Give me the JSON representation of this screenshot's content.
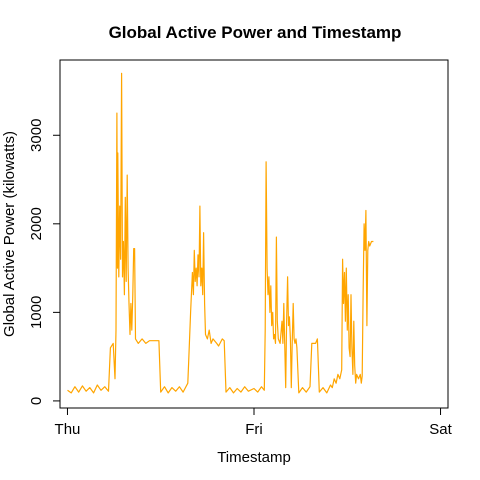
{
  "chart_data": {
    "type": "line",
    "title": "Global Active Power and Timestamp",
    "xlabel": "Timestamp",
    "ylabel": "Global Active Power (kilowatts)",
    "x_ticks": [
      {
        "label": "Thu",
        "value": 0
      },
      {
        "label": "Fri",
        "value": 1
      },
      {
        "label": "Sat",
        "value": 2
      }
    ],
    "y_ticks": [
      0,
      1000,
      2000,
      3000
    ],
    "xlim": [
      -0.04,
      2.04
    ],
    "ylim": [
      -80,
      3850
    ],
    "grid": false,
    "color": "#FFA500",
    "series": [
      {
        "x_unit": "days since Thu 00:00",
        "points": [
          [
            0.0,
            120
          ],
          [
            0.02,
            90
          ],
          [
            0.04,
            160
          ],
          [
            0.06,
            100
          ],
          [
            0.08,
            170
          ],
          [
            0.1,
            110
          ],
          [
            0.12,
            150
          ],
          [
            0.14,
            90
          ],
          [
            0.16,
            180
          ],
          [
            0.18,
            120
          ],
          [
            0.2,
            160
          ],
          [
            0.22,
            110
          ],
          [
            0.23,
            600
          ],
          [
            0.245,
            650
          ],
          [
            0.255,
            250
          ],
          [
            0.26,
            800
          ],
          [
            0.265,
            3250
          ],
          [
            0.268,
            1500
          ],
          [
            0.27,
            2800
          ],
          [
            0.275,
            1400
          ],
          [
            0.28,
            2200
          ],
          [
            0.285,
            1600
          ],
          [
            0.29,
            3700
          ],
          [
            0.295,
            1400
          ],
          [
            0.3,
            1800
          ],
          [
            0.305,
            1200
          ],
          [
            0.31,
            2300
          ],
          [
            0.315,
            1350
          ],
          [
            0.32,
            2550
          ],
          [
            0.325,
            1500
          ],
          [
            0.33,
            1100
          ],
          [
            0.335,
            750
          ],
          [
            0.34,
            1100
          ],
          [
            0.345,
            800
          ],
          [
            0.35,
            1200
          ],
          [
            0.355,
            1720
          ],
          [
            0.36,
            1720
          ],
          [
            0.365,
            700
          ],
          [
            0.38,
            650
          ],
          [
            0.4,
            700
          ],
          [
            0.42,
            650
          ],
          [
            0.44,
            680
          ],
          [
            0.49,
            680
          ],
          [
            0.5,
            100
          ],
          [
            0.52,
            160
          ],
          [
            0.54,
            90
          ],
          [
            0.56,
            150
          ],
          [
            0.58,
            110
          ],
          [
            0.6,
            160
          ],
          [
            0.62,
            100
          ],
          [
            0.645,
            200
          ],
          [
            0.65,
            450
          ],
          [
            0.66,
            1000
          ],
          [
            0.67,
            1450
          ],
          [
            0.675,
            1200
          ],
          [
            0.68,
            1700
          ],
          [
            0.685,
            1350
          ],
          [
            0.69,
            1500
          ],
          [
            0.695,
            1300
          ],
          [
            0.7,
            1650
          ],
          [
            0.705,
            1400
          ],
          [
            0.71,
            2200
          ],
          [
            0.715,
            1300
          ],
          [
            0.72,
            1500
          ],
          [
            0.725,
            1200
          ],
          [
            0.73,
            1900
          ],
          [
            0.735,
            1100
          ],
          [
            0.74,
            750
          ],
          [
            0.75,
            700
          ],
          [
            0.76,
            800
          ],
          [
            0.77,
            650
          ],
          [
            0.78,
            700
          ],
          [
            0.8,
            650
          ],
          [
            0.81,
            620
          ],
          [
            0.83,
            700
          ],
          [
            0.84,
            680
          ],
          [
            0.85,
            100
          ],
          [
            0.87,
            150
          ],
          [
            0.89,
            90
          ],
          [
            0.91,
            140
          ],
          [
            0.93,
            100
          ],
          [
            0.95,
            160
          ],
          [
            0.97,
            110
          ],
          [
            1.0,
            140
          ],
          [
            1.02,
            100
          ],
          [
            1.04,
            160
          ],
          [
            1.055,
            120
          ],
          [
            1.06,
            800
          ],
          [
            1.065,
            2700
          ],
          [
            1.07,
            1500
          ],
          [
            1.075,
            1200
          ],
          [
            1.08,
            1400
          ],
          [
            1.085,
            1000
          ],
          [
            1.09,
            1300
          ],
          [
            1.095,
            850
          ],
          [
            1.1,
            1000
          ],
          [
            1.105,
            700
          ],
          [
            1.11,
            750
          ],
          [
            1.115,
            650
          ],
          [
            1.12,
            1850
          ],
          [
            1.125,
            900
          ],
          [
            1.13,
            700
          ],
          [
            1.14,
            650
          ],
          [
            1.15,
            900
          ],
          [
            1.155,
            650
          ],
          [
            1.16,
            1100
          ],
          [
            1.17,
            150
          ],
          [
            1.175,
            900
          ],
          [
            1.18,
            1400
          ],
          [
            1.185,
            850
          ],
          [
            1.19,
            950
          ],
          [
            1.195,
            700
          ],
          [
            1.2,
            150
          ],
          [
            1.205,
            650
          ],
          [
            1.21,
            1100
          ],
          [
            1.215,
            700
          ],
          [
            1.22,
            650
          ],
          [
            1.225,
            700
          ],
          [
            1.23,
            600
          ],
          [
            1.24,
            90
          ],
          [
            1.26,
            150
          ],
          [
            1.28,
            100
          ],
          [
            1.3,
            160
          ],
          [
            1.31,
            650
          ],
          [
            1.33,
            650
          ],
          [
            1.34,
            700
          ],
          [
            1.35,
            100
          ],
          [
            1.37,
            150
          ],
          [
            1.39,
            90
          ],
          [
            1.41,
            180
          ],
          [
            1.42,
            150
          ],
          [
            1.43,
            250
          ],
          [
            1.44,
            200
          ],
          [
            1.45,
            300
          ],
          [
            1.46,
            250
          ],
          [
            1.47,
            350
          ],
          [
            1.475,
            1600
          ],
          [
            1.48,
            1100
          ],
          [
            1.485,
            1450
          ],
          [
            1.49,
            900
          ],
          [
            1.495,
            1500
          ],
          [
            1.5,
            800
          ],
          [
            1.505,
            1200
          ],
          [
            1.51,
            600
          ],
          [
            1.515,
            500
          ],
          [
            1.52,
            1200
          ],
          [
            1.525,
            600
          ],
          [
            1.53,
            300
          ],
          [
            1.535,
            900
          ],
          [
            1.54,
            400
          ],
          [
            1.545,
            200
          ],
          [
            1.55,
            300
          ],
          [
            1.56,
            250
          ],
          [
            1.57,
            300
          ],
          [
            1.575,
            200
          ],
          [
            1.58,
            280
          ],
          [
            1.585,
            1200
          ],
          [
            1.59,
            2000
          ],
          [
            1.595,
            1700
          ],
          [
            1.6,
            2150
          ],
          [
            1.605,
            850
          ],
          [
            1.61,
            1700
          ],
          [
            1.615,
            1800
          ],
          [
            1.62,
            1750
          ],
          [
            1.63,
            1800
          ],
          [
            1.64,
            1800
          ]
        ]
      }
    ]
  }
}
